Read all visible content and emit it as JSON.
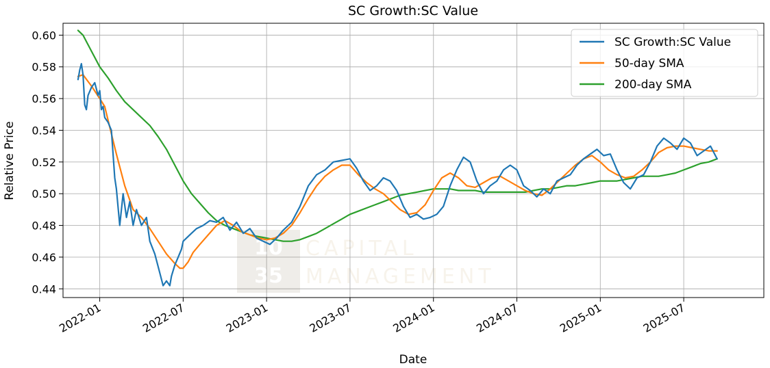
{
  "chart_data": {
    "type": "line",
    "title": "SC Growth:SC Value",
    "xlabel": "Date",
    "ylabel": "Relative Price",
    "xlim": [
      2021.78,
      2025.98
    ],
    "ylim": [
      0.4345,
      0.6075
    ],
    "grid": true,
    "legend_position": "top-right",
    "x_ticks": [
      {
        "x": 2022.0,
        "label": "2022-01"
      },
      {
        "x": 2022.5,
        "label": "2022-07"
      },
      {
        "x": 2023.0,
        "label": "2023-01"
      },
      {
        "x": 2023.5,
        "label": "2023-07"
      },
      {
        "x": 2024.0,
        "label": "2024-01"
      },
      {
        "x": 2024.5,
        "label": "2024-07"
      },
      {
        "x": 2025.0,
        "label": "2025-01"
      },
      {
        "x": 2025.5,
        "label": "2025-07"
      }
    ],
    "y_ticks": [
      {
        "y": 0.44,
        "label": "0.44"
      },
      {
        "y": 0.46,
        "label": "0.46"
      },
      {
        "y": 0.48,
        "label": "0.48"
      },
      {
        "y": 0.5,
        "label": "0.50"
      },
      {
        "y": 0.52,
        "label": "0.52"
      },
      {
        "y": 0.54,
        "label": "0.54"
      },
      {
        "y": 0.56,
        "label": "0.56"
      },
      {
        "y": 0.58,
        "label": "0.58"
      },
      {
        "y": 0.6,
        "label": "0.60"
      }
    ],
    "series": [
      {
        "name": "SC Growth:SC Value",
        "color": "#1f77b4",
        "x": [
          2021.87,
          2021.88,
          2021.89,
          2021.9,
          2021.91,
          2021.92,
          2021.93,
          2021.95,
          2021.97,
          2021.99,
          2022.0,
          2022.01,
          2022.02,
          2022.03,
          2022.05,
          2022.07,
          2022.09,
          2022.1,
          2022.12,
          2022.14,
          2022.16,
          2022.18,
          2022.2,
          2022.22,
          2022.25,
          2022.28,
          2022.3,
          2022.33,
          2022.36,
          2022.38,
          2022.4,
          2022.42,
          2022.43,
          2022.45,
          2022.47,
          2022.49,
          2022.5,
          2022.52,
          2022.55,
          2022.58,
          2022.62,
          2022.66,
          2022.7,
          2022.74,
          2022.78,
          2022.82,
          2022.86,
          2022.9,
          2022.94,
          2022.98,
          2023.02,
          2023.06,
          2023.1,
          2023.15,
          2023.2,
          2023.25,
          2023.3,
          2023.35,
          2023.4,
          2023.45,
          2023.5,
          2023.54,
          2023.58,
          2023.62,
          2023.66,
          2023.7,
          2023.74,
          2023.78,
          2023.82,
          2023.86,
          2023.9,
          2023.94,
          2023.98,
          2024.02,
          2024.06,
          2024.1,
          2024.14,
          2024.18,
          2024.22,
          2024.26,
          2024.3,
          2024.34,
          2024.38,
          2024.42,
          2024.46,
          2024.5,
          2024.54,
          2024.58,
          2024.62,
          2024.66,
          2024.7,
          2024.74,
          2024.78,
          2024.82,
          2024.86,
          2024.9,
          2024.94,
          2024.98,
          2025.02,
          2025.06,
          2025.1,
          2025.14,
          2025.18,
          2025.22,
          2025.26,
          2025.3,
          2025.34,
          2025.38,
          2025.42,
          2025.46,
          2025.5,
          2025.54,
          2025.58,
          2025.62,
          2025.66,
          2025.7
        ],
        "y": [
          0.572,
          0.578,
          0.582,
          0.575,
          0.556,
          0.553,
          0.562,
          0.567,
          0.57,
          0.562,
          0.565,
          0.553,
          0.555,
          0.548,
          0.545,
          0.54,
          0.51,
          0.503,
          0.48,
          0.5,
          0.485,
          0.495,
          0.48,
          0.49,
          0.48,
          0.485,
          0.47,
          0.462,
          0.45,
          0.442,
          0.445,
          0.442,
          0.448,
          0.455,
          0.46,
          0.465,
          0.47,
          0.472,
          0.475,
          0.478,
          0.48,
          0.483,
          0.482,
          0.485,
          0.477,
          0.482,
          0.475,
          0.478,
          0.472,
          0.47,
          0.468,
          0.472,
          0.477,
          0.482,
          0.492,
          0.505,
          0.512,
          0.515,
          0.52,
          0.521,
          0.522,
          0.516,
          0.508,
          0.502,
          0.505,
          0.51,
          0.508,
          0.502,
          0.492,
          0.485,
          0.487,
          0.484,
          0.485,
          0.487,
          0.492,
          0.505,
          0.515,
          0.523,
          0.52,
          0.508,
          0.5,
          0.505,
          0.508,
          0.515,
          0.518,
          0.515,
          0.505,
          0.502,
          0.498,
          0.503,
          0.5,
          0.508,
          0.51,
          0.512,
          0.518,
          0.522,
          0.525,
          0.528,
          0.524,
          0.525,
          0.515,
          0.507,
          0.503,
          0.51,
          0.512,
          0.52,
          0.53,
          0.535,
          0.532,
          0.528,
          0.535,
          0.532,
          0.524,
          0.527,
          0.53,
          0.522
        ]
      },
      {
        "name": "50-day SMA",
        "color": "#ff7f0e",
        "x": [
          2021.87,
          2021.9,
          2021.95,
          2022.0,
          2022.03,
          2022.06,
          2022.1,
          2022.15,
          2022.2,
          2022.25,
          2022.3,
          2022.35,
          2022.4,
          2022.45,
          2022.48,
          2022.5,
          2022.53,
          2022.56,
          2022.6,
          2022.65,
          2022.7,
          2022.75,
          2022.8,
          2022.85,
          2022.9,
          2022.95,
          2023.0,
          2023.05,
          2023.1,
          2023.15,
          2023.2,
          2023.25,
          2023.3,
          2023.35,
          2023.4,
          2023.45,
          2023.5,
          2023.55,
          2023.6,
          2023.65,
          2023.7,
          2023.75,
          2023.8,
          2023.85,
          2023.9,
          2023.95,
          2024.0,
          2024.05,
          2024.1,
          2024.15,
          2024.2,
          2024.25,
          2024.3,
          2024.35,
          2024.4,
          2024.45,
          2024.5,
          2024.55,
          2024.6,
          2024.65,
          2024.7,
          2024.75,
          2024.8,
          2024.85,
          2024.9,
          2024.95,
          2025.0,
          2025.05,
          2025.1,
          2025.15,
          2025.2,
          2025.25,
          2025.3,
          2025.35,
          2025.4,
          2025.45,
          2025.5,
          2025.55,
          2025.6,
          2025.65,
          2025.7
        ],
        "y": [
          0.574,
          0.575,
          0.568,
          0.56,
          0.555,
          0.542,
          0.525,
          0.505,
          0.49,
          0.485,
          0.478,
          0.47,
          0.462,
          0.456,
          0.453,
          0.453,
          0.457,
          0.463,
          0.468,
          0.474,
          0.48,
          0.483,
          0.48,
          0.476,
          0.474,
          0.472,
          0.471,
          0.472,
          0.475,
          0.48,
          0.488,
          0.497,
          0.505,
          0.511,
          0.515,
          0.518,
          0.518,
          0.512,
          0.507,
          0.503,
          0.5,
          0.495,
          0.49,
          0.487,
          0.488,
          0.493,
          0.502,
          0.51,
          0.513,
          0.51,
          0.505,
          0.504,
          0.507,
          0.51,
          0.511,
          0.508,
          0.505,
          0.502,
          0.5,
          0.499,
          0.503,
          0.508,
          0.513,
          0.518,
          0.522,
          0.524,
          0.52,
          0.515,
          0.512,
          0.51,
          0.511,
          0.515,
          0.52,
          0.526,
          0.529,
          0.53,
          0.53,
          0.529,
          0.528,
          0.527,
          0.527
        ]
      },
      {
        "name": "200-day SMA",
        "color": "#2ca02c",
        "x": [
          2021.87,
          2021.9,
          2021.95,
          2022.0,
          2022.05,
          2022.1,
          2022.15,
          2022.2,
          2022.25,
          2022.3,
          2022.35,
          2022.4,
          2022.45,
          2022.5,
          2022.55,
          2022.6,
          2022.65,
          2022.7,
          2022.75,
          2022.8,
          2022.85,
          2022.9,
          2022.95,
          2023.0,
          2023.05,
          2023.1,
          2023.15,
          2023.2,
          2023.25,
          2023.3,
          2023.35,
          2023.4,
          2023.45,
          2023.5,
          2023.55,
          2023.6,
          2023.65,
          2023.7,
          2023.75,
          2023.8,
          2023.85,
          2023.9,
          2023.95,
          2024.0,
          2024.05,
          2024.1,
          2024.15,
          2024.2,
          2024.25,
          2024.3,
          2024.35,
          2024.4,
          2024.45,
          2024.5,
          2024.55,
          2024.6,
          2024.65,
          2024.7,
          2024.75,
          2024.8,
          2024.85,
          2024.9,
          2024.95,
          2025.0,
          2025.05,
          2025.1,
          2025.15,
          2025.2,
          2025.25,
          2025.3,
          2025.35,
          2025.4,
          2025.45,
          2025.5,
          2025.55,
          2025.6,
          2025.65,
          2025.7
        ],
        "y": [
          0.603,
          0.6,
          0.59,
          0.58,
          0.573,
          0.565,
          0.558,
          0.553,
          0.548,
          0.543,
          0.536,
          0.528,
          0.518,
          0.508,
          0.5,
          0.494,
          0.488,
          0.483,
          0.48,
          0.478,
          0.476,
          0.474,
          0.473,
          0.472,
          0.471,
          0.47,
          0.47,
          0.471,
          0.473,
          0.475,
          0.478,
          0.481,
          0.484,
          0.487,
          0.489,
          0.491,
          0.493,
          0.495,
          0.497,
          0.499,
          0.5,
          0.501,
          0.502,
          0.503,
          0.503,
          0.503,
          0.502,
          0.502,
          0.502,
          0.501,
          0.501,
          0.501,
          0.501,
          0.501,
          0.501,
          0.502,
          0.503,
          0.503,
          0.504,
          0.505,
          0.505,
          0.506,
          0.507,
          0.508,
          0.508,
          0.508,
          0.509,
          0.51,
          0.511,
          0.511,
          0.511,
          0.512,
          0.513,
          0.515,
          0.517,
          0.519,
          0.52,
          0.522
        ]
      }
    ]
  },
  "watermark": {
    "number_top": "10",
    "number_bottom": "35",
    "word_top": "CAPITAL",
    "word_bottom": "MANAGEMENT"
  }
}
